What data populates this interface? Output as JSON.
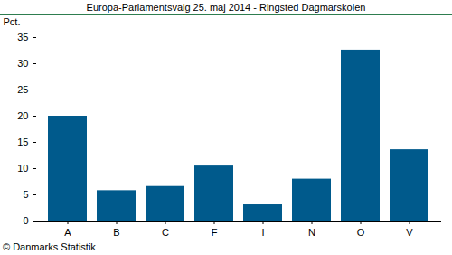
{
  "chart_data": {
    "type": "bar",
    "title": "Europa-Parlamentsvalg 25. maj 2014 - Ringsted Dagmarskolen",
    "y_label": "Pct.",
    "caption": "© Danmarks Statistik",
    "categories": [
      "A",
      "B",
      "C",
      "F",
      "I",
      "N",
      "O",
      "V"
    ],
    "values": [
      20.0,
      5.8,
      6.6,
      10.5,
      3.1,
      8.0,
      32.6,
      13.6
    ],
    "color": "#005a8c",
    "ylim": [
      0,
      35
    ],
    "yticks": [
      0,
      5,
      10,
      15,
      20,
      25,
      30,
      35
    ],
    "grid": false
  }
}
